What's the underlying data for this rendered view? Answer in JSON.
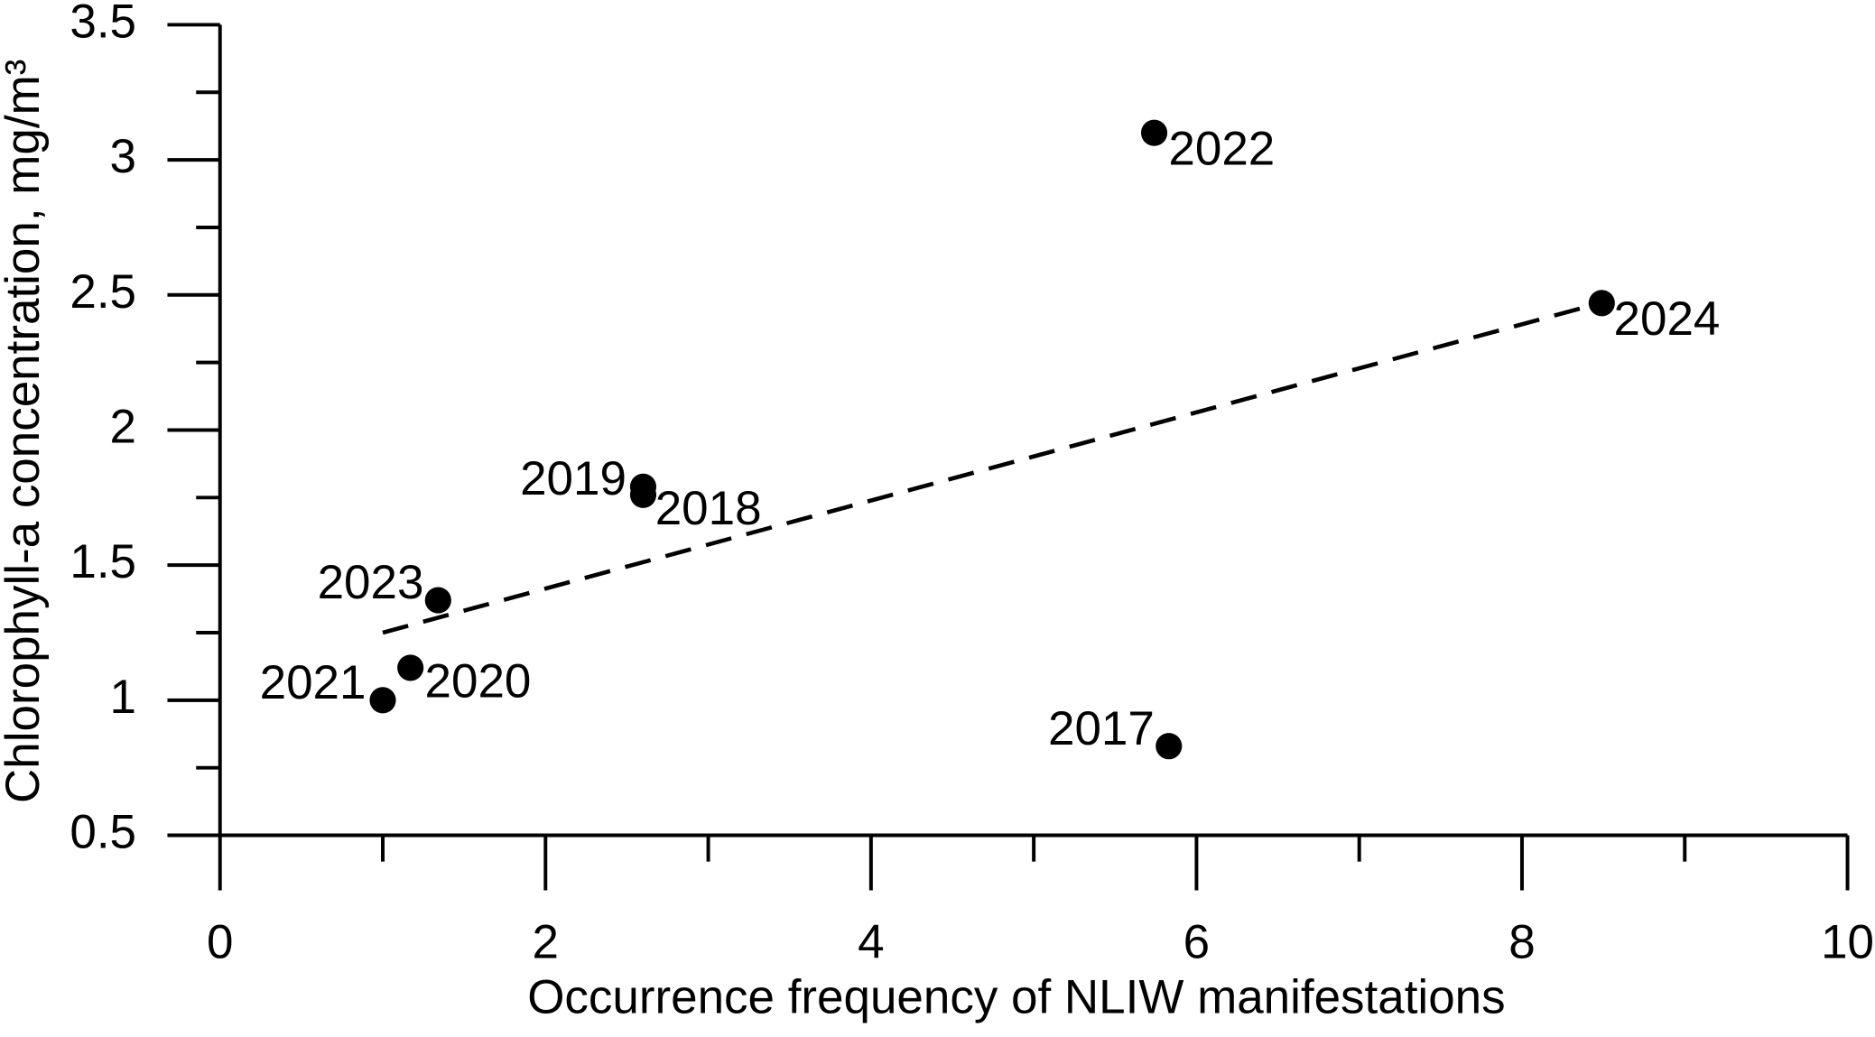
{
  "chart_data": {
    "type": "scatter",
    "xlabel": "Occurrence frequency of NLIW manifestations",
    "ylabel": "Chlorophyll-a concentration, mg/m³",
    "labels": [
      "2017",
      "2018",
      "2019",
      "2020",
      "2021",
      "2022",
      "2023",
      "2024"
    ],
    "x": [
      5.83,
      2.6,
      2.6,
      1.17,
      1.0,
      5.74,
      1.34,
      8.49
    ],
    "y": [
      0.83,
      1.76,
      1.79,
      1.12,
      1.0,
      3.1,
      1.37,
      2.47
    ],
    "color": "#000000",
    "trendline": {
      "x": [
        1.0,
        8.42
      ],
      "y": [
        1.25,
        2.46
      ]
    },
    "xlim": [
      0,
      10
    ],
    "xticks": [
      0,
      2,
      4,
      6,
      8,
      10
    ],
    "xminorticks": [
      1,
      3,
      5,
      7,
      9
    ],
    "ylim": [
      0.5,
      3.5
    ],
    "yticks": [
      0.5,
      1,
      1.5,
      2,
      2.5,
      3,
      3.5
    ],
    "yminorticks": [
      0.75,
      1.25,
      1.75,
      2.25,
      2.75,
      3.25
    ],
    "grid": false
  }
}
